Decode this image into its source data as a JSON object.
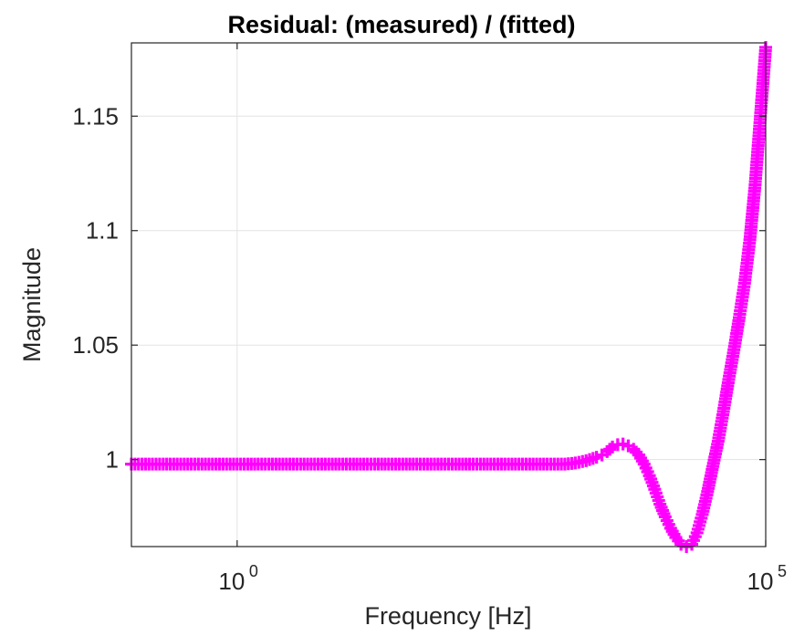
{
  "chart_data": {
    "type": "scatter",
    "title": "Residual: (measured) / (fitted)",
    "xlabel": "Frequency [Hz]",
    "ylabel": "Magnitude",
    "xscale": "log",
    "xlim": [
      0.1,
      100000
    ],
    "ylim": [
      0.962,
      1.182
    ],
    "grid": true,
    "marker": "+",
    "x_ticks": [
      {
        "value": 1,
        "base": "10",
        "exp": "0"
      },
      {
        "value": 100000,
        "base": "10",
        "exp": "5"
      }
    ],
    "y_ticks": [
      {
        "value": 1,
        "label": "1"
      },
      {
        "value": 1.05,
        "label": "1.05"
      },
      {
        "value": 1.1,
        "label": "1.1"
      },
      {
        "value": 1.15,
        "label": "1.15"
      }
    ],
    "colors": {
      "series": "#ff00ff",
      "grid": "#e3e3e3",
      "axis": "#262626"
    },
    "series": [
      {
        "x": [
          0.1,
          0.126,
          0.158,
          0.2,
          0.251,
          0.316,
          0.398,
          0.501,
          0.631,
          0.794,
          1,
          1.26,
          1.58,
          2,
          2.51,
          3.16,
          3.98,
          5.01,
          6.31,
          7.94,
          10,
          12.6,
          15.8,
          20,
          25.1,
          31.6,
          39.8,
          50.1,
          63.1,
          79.4,
          100,
          126,
          158,
          200,
          251,
          316,
          398,
          501,
          631,
          794,
          1000,
          1260,
          1580,
          2000,
          2510,
          2820,
          3160,
          3550,
          3980,
          4470,
          5010,
          5620,
          6310,
          7080,
          7940,
          8910,
          10000,
          11200,
          12600,
          14100,
          15800,
          17800,
          20000,
          22400,
          25100,
          28200,
          31600,
          35500,
          39800,
          44700,
          50100,
          56200,
          63100,
          70800,
          79400,
          89100,
          100000
        ],
        "y": [
          0.998,
          0.998,
          0.998,
          0.998,
          0.998,
          0.998,
          0.998,
          0.998,
          0.998,
          0.998,
          0.998,
          0.998,
          0.998,
          0.998,
          0.998,
          0.998,
          0.998,
          0.998,
          0.998,
          0.998,
          0.998,
          0.998,
          0.998,
          0.998,
          0.998,
          0.998,
          0.998,
          0.998,
          0.998,
          0.998,
          0.998,
          0.998,
          0.998,
          0.998,
          0.998,
          0.998,
          0.998,
          0.998,
          0.998,
          0.998,
          0.998,
          0.998,
          0.9985,
          0.9995,
          1.001,
          1.002,
          1.0035,
          1.0055,
          1.0065,
          1.0068,
          1.006,
          1.0045,
          1.002,
          0.998,
          0.993,
          0.987,
          0.9805,
          0.975,
          0.97,
          0.966,
          0.963,
          0.962,
          0.963,
          0.968,
          0.976,
          0.986,
          0.997,
          1.008,
          1.021,
          1.035,
          1.048,
          1.062,
          1.077,
          1.096,
          1.12,
          1.15,
          1.18
        ]
      }
    ]
  }
}
